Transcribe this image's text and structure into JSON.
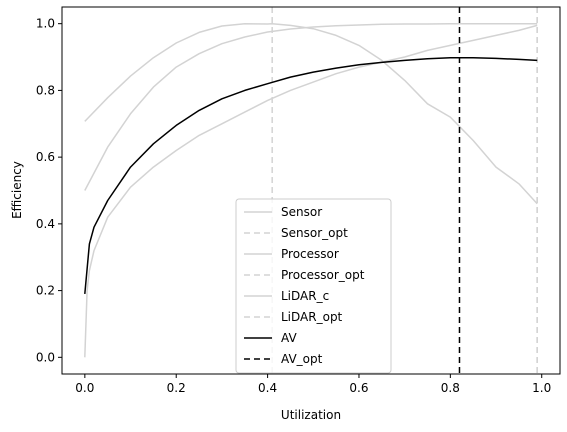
{
  "chart_data": {
    "type": "line",
    "xlabel": "Utilization",
    "ylabel": "Efficiency",
    "xlim": [
      -0.05,
      1.04
    ],
    "ylim": [
      -0.05,
      1.05
    ],
    "xticks": [
      0.0,
      0.2,
      0.4,
      0.6,
      0.8,
      1.0
    ],
    "xtick_labels": [
      "0.0",
      "0.2",
      "0.4",
      "0.6",
      "0.8",
      "1.0"
    ],
    "yticks": [
      0.0,
      0.2,
      0.4,
      0.6,
      0.8,
      1.0
    ],
    "ytick_labels": [
      "0.0",
      "0.2",
      "0.4",
      "0.6",
      "0.8",
      "1.0"
    ],
    "grid": false,
    "legend_placement": "lower-center",
    "series": [
      {
        "name": "Sensor",
        "color": "#d3d3d3",
        "style": "solid",
        "x": [
          0.0,
          0.05,
          0.1,
          0.15,
          0.2,
          0.25,
          0.3,
          0.35,
          0.4,
          0.41,
          0.45,
          0.5,
          0.55,
          0.6,
          0.65,
          0.7,
          0.75,
          0.8,
          0.85,
          0.9,
          0.95,
          0.99
        ],
        "y": [
          0.707,
          0.778,
          0.843,
          0.898,
          0.942,
          0.974,
          0.993,
          1.0,
          0.999,
          1.0,
          0.995,
          0.985,
          0.965,
          0.935,
          0.89,
          0.83,
          0.76,
          0.72,
          0.65,
          0.57,
          0.52,
          0.46
        ]
      },
      {
        "name": "Sensor_opt",
        "color": "#d3d3d3",
        "style": "dashed",
        "vertical_x": 0.41
      },
      {
        "name": "Processor",
        "color": "#d3d3d3",
        "style": "solid",
        "x": [
          0.0,
          0.05,
          0.1,
          0.15,
          0.2,
          0.25,
          0.3,
          0.35,
          0.4,
          0.45,
          0.5,
          0.55,
          0.6,
          0.65,
          0.7,
          0.75,
          0.8,
          0.85,
          0.9,
          0.95,
          0.99
        ],
        "y": [
          0.5,
          0.63,
          0.73,
          0.81,
          0.87,
          0.91,
          0.94,
          0.96,
          0.975,
          0.984,
          0.99,
          0.994,
          0.996,
          0.998,
          0.999,
          0.999,
          1.0,
          1.0,
          1.0,
          1.0,
          1.0
        ]
      },
      {
        "name": "Processor_opt",
        "color": "#d3d3d3",
        "style": "dashed",
        "vertical_x": 0.99
      },
      {
        "name": "LiDAR_c",
        "color": "#d3d3d3",
        "style": "solid",
        "x": [
          0.0,
          0.005,
          0.01,
          0.02,
          0.05,
          0.1,
          0.15,
          0.2,
          0.25,
          0.3,
          0.35,
          0.4,
          0.45,
          0.5,
          0.55,
          0.6,
          0.65,
          0.7,
          0.75,
          0.8,
          0.85,
          0.9,
          0.95,
          0.99
        ],
        "y": [
          0.0,
          0.2,
          0.26,
          0.32,
          0.42,
          0.51,
          0.57,
          0.62,
          0.665,
          0.7,
          0.735,
          0.77,
          0.8,
          0.825,
          0.85,
          0.87,
          0.885,
          0.9,
          0.92,
          0.935,
          0.95,
          0.965,
          0.98,
          0.995
        ]
      },
      {
        "name": "LiDAR_opt",
        "color": "#d3d3d3",
        "style": "dashed",
        "vertical_x": 0.99
      },
      {
        "name": "AV",
        "color": "#000000",
        "style": "solid",
        "x": [
          0.0,
          0.01,
          0.02,
          0.05,
          0.1,
          0.15,
          0.2,
          0.25,
          0.3,
          0.35,
          0.4,
          0.45,
          0.5,
          0.55,
          0.6,
          0.65,
          0.7,
          0.75,
          0.8,
          0.82,
          0.85,
          0.9,
          0.95,
          0.99
        ],
        "y": [
          0.19,
          0.34,
          0.39,
          0.47,
          0.57,
          0.64,
          0.695,
          0.74,
          0.775,
          0.8,
          0.82,
          0.84,
          0.855,
          0.867,
          0.877,
          0.884,
          0.89,
          0.895,
          0.898,
          0.898,
          0.898,
          0.896,
          0.893,
          0.89
        ]
      },
      {
        "name": "AV_opt",
        "color": "#000000",
        "style": "dashed",
        "vertical_x": 0.82
      }
    ]
  }
}
